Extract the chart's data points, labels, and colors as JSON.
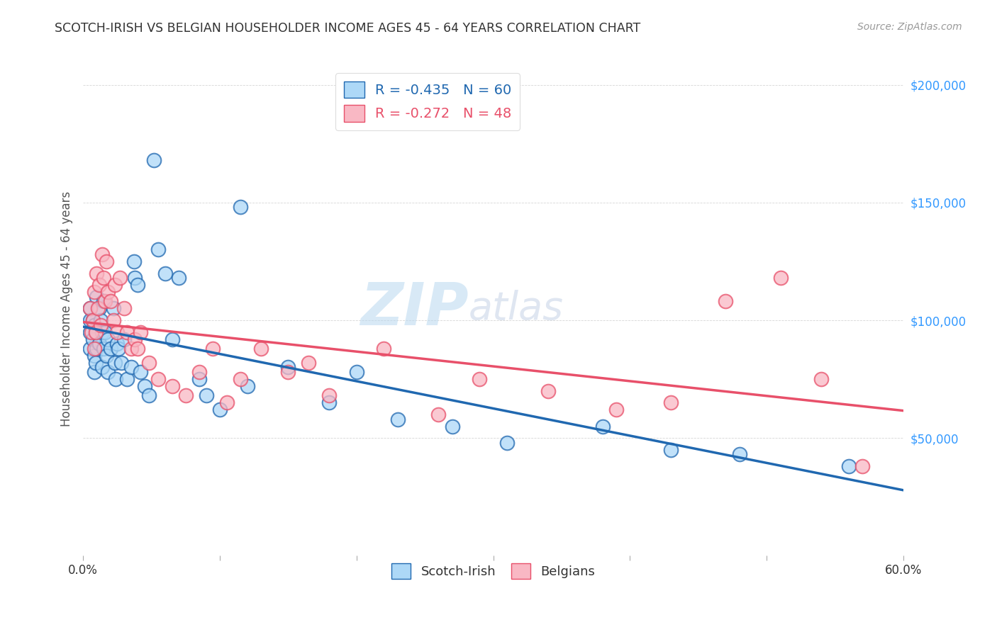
{
  "title": "SCOTCH-IRISH VS BELGIAN HOUSEHOLDER INCOME AGES 45 - 64 YEARS CORRELATION CHART",
  "source": "Source: ZipAtlas.com",
  "ylabel": "Householder Income Ages 45 - 64 years",
  "xlim": [
    0.0,
    0.6
  ],
  "ylim": [
    0,
    210000
  ],
  "watermark": "ZIPatlas",
  "legend_scotchirish_R": "-0.435",
  "legend_scotchirish_N": "60",
  "legend_belgians_R": "-0.272",
  "legend_belgians_N": "48",
  "scotchirish_color": "#add8f7",
  "belgians_color": "#f9b8c4",
  "scotchirish_line_color": "#2068b0",
  "belgians_line_color": "#e8506a",
  "background_color": "#ffffff",
  "scotchirish_x": [
    0.005,
    0.005,
    0.005,
    0.005,
    0.007,
    0.007,
    0.008,
    0.008,
    0.008,
    0.009,
    0.01,
    0.01,
    0.01,
    0.012,
    0.012,
    0.013,
    0.014,
    0.014,
    0.015,
    0.015,
    0.016,
    0.017,
    0.018,
    0.018,
    0.02,
    0.022,
    0.023,
    0.024,
    0.025,
    0.026,
    0.028,
    0.03,
    0.032,
    0.035,
    0.037,
    0.038,
    0.04,
    0.042,
    0.045,
    0.048,
    0.052,
    0.055,
    0.06,
    0.065,
    0.07,
    0.085,
    0.09,
    0.1,
    0.115,
    0.12,
    0.15,
    0.18,
    0.2,
    0.23,
    0.27,
    0.31,
    0.38,
    0.43,
    0.48,
    0.56
  ],
  "scotchirish_y": [
    105000,
    100000,
    95000,
    88000,
    100000,
    92000,
    98000,
    85000,
    78000,
    82000,
    110000,
    95000,
    88000,
    105000,
    90000,
    100000,
    95000,
    80000,
    108000,
    88000,
    95000,
    85000,
    92000,
    78000,
    88000,
    105000,
    82000,
    75000,
    90000,
    88000,
    82000,
    92000,
    75000,
    80000,
    125000,
    118000,
    115000,
    78000,
    72000,
    68000,
    168000,
    130000,
    120000,
    92000,
    118000,
    75000,
    68000,
    62000,
    148000,
    72000,
    80000,
    65000,
    78000,
    58000,
    55000,
    48000,
    55000,
    45000,
    43000,
    38000
  ],
  "belgians_x": [
    0.005,
    0.006,
    0.007,
    0.008,
    0.008,
    0.009,
    0.01,
    0.011,
    0.012,
    0.013,
    0.014,
    0.015,
    0.016,
    0.017,
    0.018,
    0.02,
    0.022,
    0.023,
    0.025,
    0.027,
    0.03,
    0.032,
    0.035,
    0.038,
    0.04,
    0.042,
    0.048,
    0.055,
    0.065,
    0.075,
    0.085,
    0.095,
    0.105,
    0.115,
    0.13,
    0.15,
    0.165,
    0.18,
    0.22,
    0.26,
    0.29,
    0.34,
    0.39,
    0.43,
    0.47,
    0.51,
    0.54,
    0.57
  ],
  "belgians_y": [
    105000,
    95000,
    100000,
    112000,
    88000,
    95000,
    120000,
    105000,
    115000,
    98000,
    128000,
    118000,
    108000,
    125000,
    112000,
    108000,
    100000,
    115000,
    95000,
    118000,
    105000,
    95000,
    88000,
    92000,
    88000,
    95000,
    82000,
    75000,
    72000,
    68000,
    78000,
    88000,
    65000,
    75000,
    88000,
    78000,
    82000,
    68000,
    88000,
    60000,
    75000,
    70000,
    62000,
    65000,
    108000,
    118000,
    75000,
    38000
  ]
}
